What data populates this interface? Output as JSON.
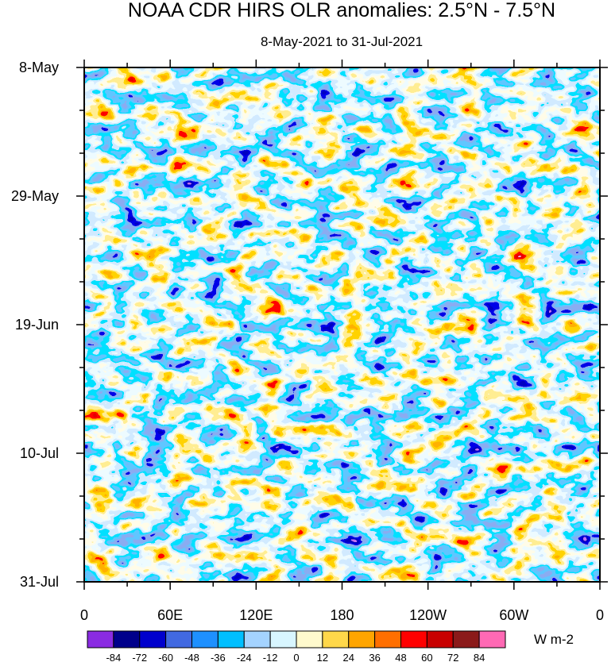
{
  "chart_data": {
    "type": "heatmap",
    "title": "NOAA CDR HIRS OLR anomalies: 2.5°N - 7.5°N",
    "subtitle": "8-May-2021 to 31-Jul-2021",
    "x_ticks": [
      "0",
      "60E",
      "120E",
      "180",
      "120W",
      "60W",
      "0"
    ],
    "x_range_deg_east": [
      0,
      360
    ],
    "y_ticks": [
      "8-May",
      "29-May",
      "19-Jun",
      "10-Jul",
      "31-Jul"
    ],
    "y_range": [
      "8-May-2021",
      "31-Jul-2021"
    ],
    "colorbar": {
      "unit": "W m-2",
      "labels": [
        "-84",
        "-72",
        "-60",
        "-48",
        "-36",
        "-24",
        "-12",
        "0",
        "12",
        "24",
        "36",
        "48",
        "60",
        "72",
        "84"
      ],
      "colors": [
        "#8a2be2",
        "#00008b",
        "#0000cd",
        "#4169e1",
        "#1e90ff",
        "#00bfff",
        "#a4d3ff",
        "#d8f6ff",
        "#fffacd",
        "#ffd84a",
        "#ffa500",
        "#ff6f00",
        "#ff0000",
        "#c80000",
        "#8b1a1a",
        "#ff69b4"
      ]
    }
  }
}
